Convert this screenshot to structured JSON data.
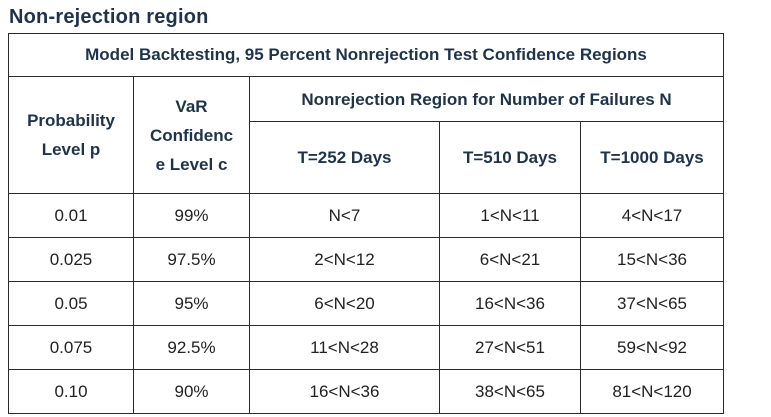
{
  "heading": "Non-rejection region",
  "table": {
    "title": "Model Backtesting, 95 Percent Nonrejection Test  Confidence Regions",
    "col_prob": [
      "Probability",
      "Level p"
    ],
    "col_var": [
      "VaR",
      "Confidenc",
      "e Level c"
    ],
    "col_region": "Nonrejection Region for Number of Failures N",
    "col_t252": "T=252 Days",
    "col_t510": "T=510 Days",
    "col_t1000": "T=1000 Days",
    "rows": [
      {
        "p": "0.01",
        "c": "99%",
        "t252": "N<7",
        "t510": "1<N<11",
        "t1000": "4<N<17"
      },
      {
        "p": "0.025",
        "c": "97.5%",
        "t252": "2<N<12",
        "t510": "6<N<21",
        "t1000": "15<N<36"
      },
      {
        "p": "0.05",
        "c": "95%",
        "t252": "6<N<20",
        "t510": "16<N<36",
        "t1000": "37<N<65"
      },
      {
        "p": "0.075",
        "c": "92.5%",
        "t252": "11<N<28",
        "t510": "27<N<51",
        "t1000": "59<N<92"
      },
      {
        "p": "0.10",
        "c": "90%",
        "t252": "16<N<36",
        "t510": "38<N<65",
        "t1000": "81<N<120"
      }
    ]
  }
}
